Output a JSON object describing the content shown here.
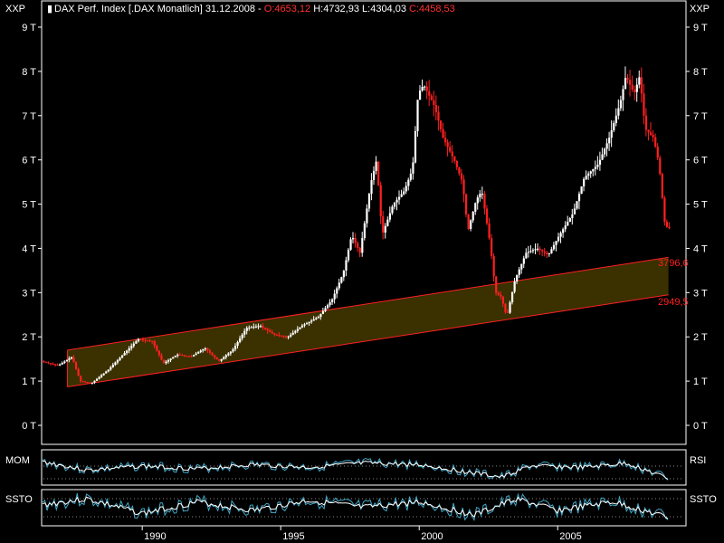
{
  "header": {
    "symbol": "DAX Perf. Index [.DAX",
    "period": "Monatlich]",
    "date": "31.12.2008",
    "open_label": "O:4653,12",
    "high_label": "H:4732,93",
    "low_label": "L:4304,03",
    "close_label": "C:4458,53"
  },
  "axis_tag_left": "XXP",
  "axis_tag_right": "XXP",
  "panels": {
    "mom_label": "MOM",
    "rsi_label": "RSI",
    "ssto_label": "SSTO"
  },
  "colors": {
    "background": "#000000",
    "panel_border": "#ffffff",
    "up_candle": "#ffffff",
    "down_candle": "#ff2020",
    "channel_fill": "#3a3000",
    "channel_line": "#ff2020",
    "indicator_line": "#40a8c8",
    "indicator_line_2": "#ffffff",
    "channel_label": "#ff2020",
    "header_red": "#ff3030"
  },
  "chart_data": {
    "type": "candlestick",
    "title": "DAX Perf. Index [.DAX Monatlich] 31.12.2008",
    "y_ticks": [
      "0 T",
      "1 T",
      "2 T",
      "3 T",
      "4 T",
      "5 T",
      "6 T",
      "7 T",
      "8 T",
      "9 T"
    ],
    "ylim": [
      0,
      9000
    ],
    "x_ticks": [
      "1990",
      "1995",
      "2000",
      "2005"
    ],
    "xlim": [
      1986.4,
      2009.6
    ],
    "grid": false,
    "channel": {
      "upper_start": [
        1987.3,
        1700
      ],
      "upper_end": [
        2009.0,
        3796.6
      ],
      "lower_start": [
        1987.3,
        870
      ],
      "lower_end": [
        2009.0,
        2949.5
      ],
      "upper_label": "3796,6",
      "lower_label": "2949,5"
    },
    "price_path": [
      [
        1986.4,
        1450
      ],
      [
        1987.0,
        1350
      ],
      [
        1987.5,
        1550
      ],
      [
        1987.8,
        1000
      ],
      [
        1988.2,
        950
      ],
      [
        1988.8,
        1250
      ],
      [
        1989.5,
        1700
      ],
      [
        1989.9,
        1950
      ],
      [
        1990.4,
        1900
      ],
      [
        1990.8,
        1400
      ],
      [
        1991.3,
        1600
      ],
      [
        1991.8,
        1550
      ],
      [
        1992.3,
        1750
      ],
      [
        1992.8,
        1450
      ],
      [
        1993.3,
        1700
      ],
      [
        1993.8,
        2200
      ],
      [
        1994.3,
        2250
      ],
      [
        1994.8,
        2050
      ],
      [
        1995.3,
        2000
      ],
      [
        1995.8,
        2250
      ],
      [
        1996.4,
        2450
      ],
      [
        1996.9,
        2850
      ],
      [
        1997.3,
        3450
      ],
      [
        1997.6,
        4300
      ],
      [
        1997.9,
        3900
      ],
      [
        1998.3,
        5500
      ],
      [
        1998.5,
        6000
      ],
      [
        1998.7,
        4300
      ],
      [
        1999.1,
        5000
      ],
      [
        1999.5,
        5300
      ],
      [
        1999.8,
        5800
      ],
      [
        2000.0,
        7500
      ],
      [
        2000.2,
        7700
      ],
      [
        2000.6,
        7200
      ],
      [
        2000.9,
        6500
      ],
      [
        2001.3,
        6000
      ],
      [
        2001.6,
        5500
      ],
      [
        2001.8,
        4400
      ],
      [
        2002.1,
        5100
      ],
      [
        2002.3,
        5300
      ],
      [
        2002.6,
        4100
      ],
      [
        2002.8,
        3000
      ],
      [
        2003.0,
        2900
      ],
      [
        2003.2,
        2450
      ],
      [
        2003.5,
        3300
      ],
      [
        2003.9,
        3900
      ],
      [
        2004.3,
        4000
      ],
      [
        2004.7,
        3850
      ],
      [
        2005.1,
        4300
      ],
      [
        2005.6,
        4800
      ],
      [
        2006.0,
        5600
      ],
      [
        2006.5,
        5900
      ],
      [
        2006.9,
        6500
      ],
      [
        2007.3,
        7300
      ],
      [
        2007.5,
        7900
      ],
      [
        2007.8,
        7500
      ],
      [
        2008.0,
        7900
      ],
      [
        2008.2,
        6700
      ],
      [
        2008.5,
        6500
      ],
      [
        2008.7,
        5900
      ],
      [
        2008.9,
        4600
      ],
      [
        2009.0,
        4458
      ]
    ],
    "indicator_path_mom": [
      [
        1986.4,
        0.3
      ],
      [
        1988,
        0.6
      ],
      [
        1990,
        0.45
      ],
      [
        1992,
        0.55
      ],
      [
        1994,
        0.4
      ],
      [
        1996,
        0.5
      ],
      [
        1998,
        0.35
      ],
      [
        2000,
        0.4
      ],
      [
        2002,
        0.7
      ],
      [
        2003,
        0.85
      ],
      [
        2004,
        0.45
      ],
      [
        2006,
        0.5
      ],
      [
        2007.5,
        0.35
      ],
      [
        2009,
        0.9
      ]
    ],
    "indicator_path_ssto": [
      [
        1986.4,
        0.4
      ],
      [
        1988,
        0.2
      ],
      [
        1990,
        0.7
      ],
      [
        1992,
        0.3
      ],
      [
        1994,
        0.6
      ],
      [
        1996,
        0.25
      ],
      [
        1998,
        0.5
      ],
      [
        2000,
        0.3
      ],
      [
        2002,
        0.75
      ],
      [
        2003.5,
        0.2
      ],
      [
        2005,
        0.6
      ],
      [
        2007,
        0.3
      ],
      [
        2009,
        0.85
      ]
    ]
  }
}
